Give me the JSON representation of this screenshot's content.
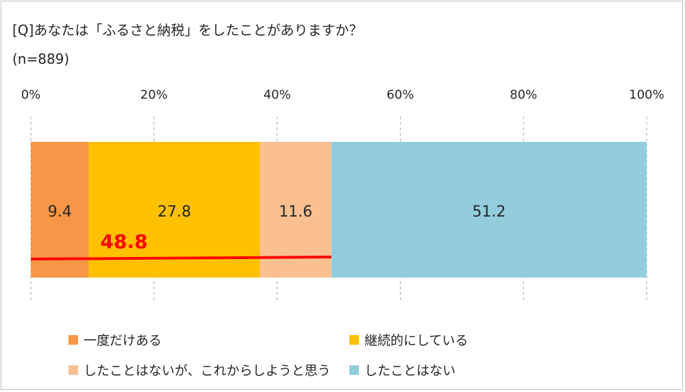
{
  "question": "[Q]あなたは「ふるさと納税」をしたことがありますか？",
  "sample": "(n=889)",
  "chart_data": {
    "type": "bar",
    "orientation": "horizontal",
    "stacked": true,
    "percent": true,
    "xlim": [
      0,
      100
    ],
    "ticks": [
      "0%",
      "20%",
      "40%",
      "60%",
      "80%",
      "100%"
    ],
    "tick_values": [
      0,
      20,
      40,
      60,
      80,
      100
    ],
    "grid": true,
    "categories": [
      ""
    ],
    "series": [
      {
        "name": "一度だけある",
        "values": [
          9.4
        ],
        "label": "9.4",
        "color": "#f79646"
      },
      {
        "name": "継続的にしている",
        "values": [
          27.8
        ],
        "label": "27.8",
        "color": "#ffc000"
      },
      {
        "name": "したことはないが、これからしようと思う",
        "values": [
          11.6
        ],
        "label": "11.6",
        "color": "#fac090"
      },
      {
        "name": "したことはない",
        "values": [
          51.2
        ],
        "label": "51.2",
        "color": "#93cddd"
      }
    ],
    "annotation": {
      "text": "48.8",
      "value": 48.8,
      "color": "#ff0000",
      "spans_series": [
        0,
        1,
        2
      ]
    },
    "legend_position": "bottom"
  }
}
